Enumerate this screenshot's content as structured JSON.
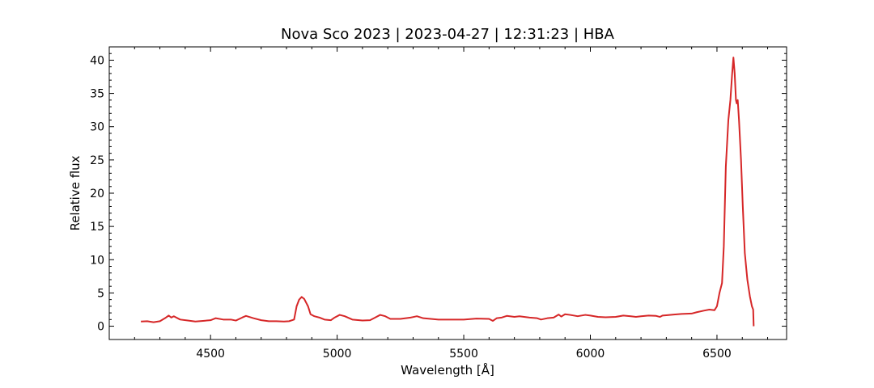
{
  "chart_data": {
    "type": "line",
    "title": "Nova Sco 2023 | 2023-04-27 | 12:31:23 | HBA",
    "xlabel": "Wavelength [Å]",
    "ylabel": "Relative flux",
    "xlim": [
      4100,
      6775
    ],
    "ylim": [
      -2,
      42
    ],
    "xticks": [
      4500,
      5000,
      5500,
      6000,
      6500
    ],
    "yticks": [
      0,
      5,
      10,
      15,
      20,
      25,
      30,
      35,
      40
    ],
    "grid": false,
    "legend": "none",
    "series": [
      {
        "color": "#d62728",
        "points": [
          [
            4225,
            0.7
          ],
          [
            4250,
            0.75
          ],
          [
            4275,
            0.6
          ],
          [
            4300,
            0.75
          ],
          [
            4320,
            1.2
          ],
          [
            4335,
            1.6
          ],
          [
            4345,
            1.3
          ],
          [
            4355,
            1.5
          ],
          [
            4380,
            1.0
          ],
          [
            4410,
            0.85
          ],
          [
            4440,
            0.7
          ],
          [
            4470,
            0.8
          ],
          [
            4500,
            0.9
          ],
          [
            4520,
            1.2
          ],
          [
            4550,
            1.0
          ],
          [
            4580,
            1.0
          ],
          [
            4600,
            0.85
          ],
          [
            4625,
            1.3
          ],
          [
            4640,
            1.55
          ],
          [
            4670,
            1.2
          ],
          [
            4700,
            0.9
          ],
          [
            4730,
            0.75
          ],
          [
            4760,
            0.75
          ],
          [
            4790,
            0.7
          ],
          [
            4810,
            0.75
          ],
          [
            4830,
            1.0
          ],
          [
            4840,
            3.0
          ],
          [
            4850,
            4.0
          ],
          [
            4860,
            4.4
          ],
          [
            4870,
            4.1
          ],
          [
            4885,
            3.0
          ],
          [
            4895,
            1.8
          ],
          [
            4910,
            1.5
          ],
          [
            4930,
            1.3
          ],
          [
            4950,
            1.0
          ],
          [
            4975,
            0.9
          ],
          [
            4990,
            1.3
          ],
          [
            5010,
            1.7
          ],
          [
            5030,
            1.5
          ],
          [
            5060,
            1.0
          ],
          [
            5100,
            0.85
          ],
          [
            5130,
            0.9
          ],
          [
            5150,
            1.3
          ],
          [
            5170,
            1.7
          ],
          [
            5190,
            1.5
          ],
          [
            5210,
            1.1
          ],
          [
            5250,
            1.1
          ],
          [
            5290,
            1.3
          ],
          [
            5315,
            1.5
          ],
          [
            5340,
            1.2
          ],
          [
            5400,
            1.0
          ],
          [
            5450,
            1.0
          ],
          [
            5500,
            1.0
          ],
          [
            5550,
            1.15
          ],
          [
            5600,
            1.1
          ],
          [
            5615,
            0.8
          ],
          [
            5630,
            1.2
          ],
          [
            5650,
            1.3
          ],
          [
            5670,
            1.55
          ],
          [
            5700,
            1.4
          ],
          [
            5720,
            1.5
          ],
          [
            5760,
            1.3
          ],
          [
            5790,
            1.2
          ],
          [
            5805,
            1.0
          ],
          [
            5830,
            1.2
          ],
          [
            5855,
            1.3
          ],
          [
            5875,
            1.75
          ],
          [
            5885,
            1.45
          ],
          [
            5900,
            1.8
          ],
          [
            5920,
            1.7
          ],
          [
            5950,
            1.5
          ],
          [
            5980,
            1.7
          ],
          [
            6000,
            1.6
          ],
          [
            6030,
            1.4
          ],
          [
            6060,
            1.35
          ],
          [
            6100,
            1.4
          ],
          [
            6130,
            1.6
          ],
          [
            6160,
            1.5
          ],
          [
            6180,
            1.4
          ],
          [
            6200,
            1.5
          ],
          [
            6230,
            1.6
          ],
          [
            6260,
            1.55
          ],
          [
            6275,
            1.4
          ],
          [
            6285,
            1.6
          ],
          [
            6300,
            1.65
          ],
          [
            6330,
            1.75
          ],
          [
            6360,
            1.85
          ],
          [
            6400,
            1.9
          ],
          [
            6420,
            2.1
          ],
          [
            6450,
            2.35
          ],
          [
            6470,
            2.5
          ],
          [
            6490,
            2.4
          ],
          [
            6500,
            3.0
          ],
          [
            6510,
            5.0
          ],
          [
            6520,
            6.5
          ],
          [
            6527,
            12.0
          ],
          [
            6535,
            24.0
          ],
          [
            6545,
            31.0
          ],
          [
            6553,
            34.0
          ],
          [
            6560,
            38.0
          ],
          [
            6565,
            40.4
          ],
          [
            6570,
            38.0
          ],
          [
            6575,
            34.0
          ],
          [
            6578,
            33.5
          ],
          [
            6582,
            34.0
          ],
          [
            6587,
            31.0
          ],
          [
            6595,
            25.0
          ],
          [
            6602,
            18.0
          ],
          [
            6610,
            11.0
          ],
          [
            6620,
            7.0
          ],
          [
            6630,
            4.5
          ],
          [
            6638,
            3.0
          ],
          [
            6643,
            2.5
          ],
          [
            6645,
            0.0
          ]
        ]
      }
    ]
  }
}
